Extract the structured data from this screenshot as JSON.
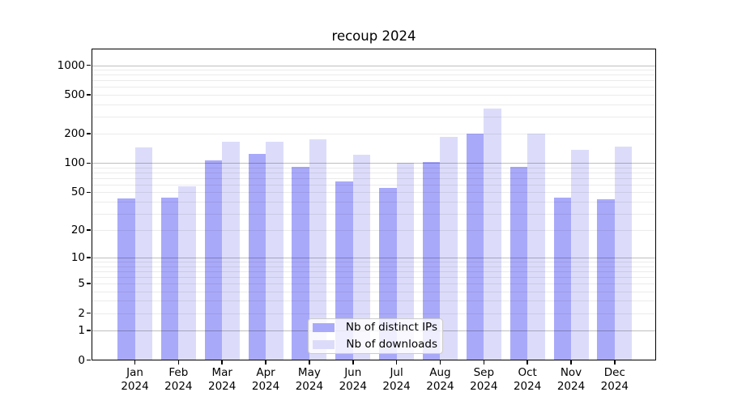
{
  "title": "recoup 2024",
  "chart_data": {
    "type": "bar",
    "title": "recoup 2024",
    "categories": [
      "Jan 2024",
      "Feb 2024",
      "Mar 2024",
      "Apr 2024",
      "May 2024",
      "Jun 2024",
      "Jul 2024",
      "Aug 2024",
      "Sep 2024",
      "Oct 2024",
      "Nov 2024",
      "Dec 2024"
    ],
    "x_tick_labels": [
      [
        "Jan",
        "2024"
      ],
      [
        "Feb",
        "2024"
      ],
      [
        "Mar",
        "2024"
      ],
      [
        "Apr",
        "2024"
      ],
      [
        "May",
        "2024"
      ],
      [
        "Jun",
        "2024"
      ],
      [
        "Jul",
        "2024"
      ],
      [
        "Aug",
        "2024"
      ],
      [
        "Sep",
        "2024"
      ],
      [
        "Oct",
        "2024"
      ],
      [
        "Nov",
        "2024"
      ],
      [
        "Dec",
        "2024"
      ]
    ],
    "series": [
      {
        "name": "Nb of distinct IPs",
        "color": "#a9a9fa",
        "values": [
          43,
          44,
          106,
          125,
          92,
          65,
          55,
          102,
          202,
          91,
          44,
          42
        ]
      },
      {
        "name": "Nb of downloads",
        "color": "#dcdcfa",
        "values": [
          146,
          58,
          167,
          165,
          177,
          121,
          100,
          187,
          359,
          199,
          138,
          149
        ]
      }
    ],
    "yscale": "log1p",
    "y_ticks": [
      0,
      1,
      2,
      5,
      10,
      20,
      50,
      100,
      200,
      500,
      1000
    ],
    "y_tick_labels": [
      "0",
      "1",
      "2",
      "5",
      "10",
      "20",
      "50",
      "100",
      "200",
      "500",
      "1000"
    ],
    "y_major_gridlines": [
      1,
      10,
      100,
      1000
    ],
    "ylim": [
      0,
      1450
    ],
    "grid": "horizontal",
    "legend_position": "lower center"
  },
  "colors": {
    "background": "#ffffff",
    "spine": "#000000",
    "major_grid": "rgba(0,0,0,0.25)",
    "minor_grid": "rgba(0,0,0,0.08)",
    "bar_distinct_ips": "#a9a9fa",
    "bar_downloads": "#dcdcfa",
    "legend_border": "#cccccc"
  }
}
